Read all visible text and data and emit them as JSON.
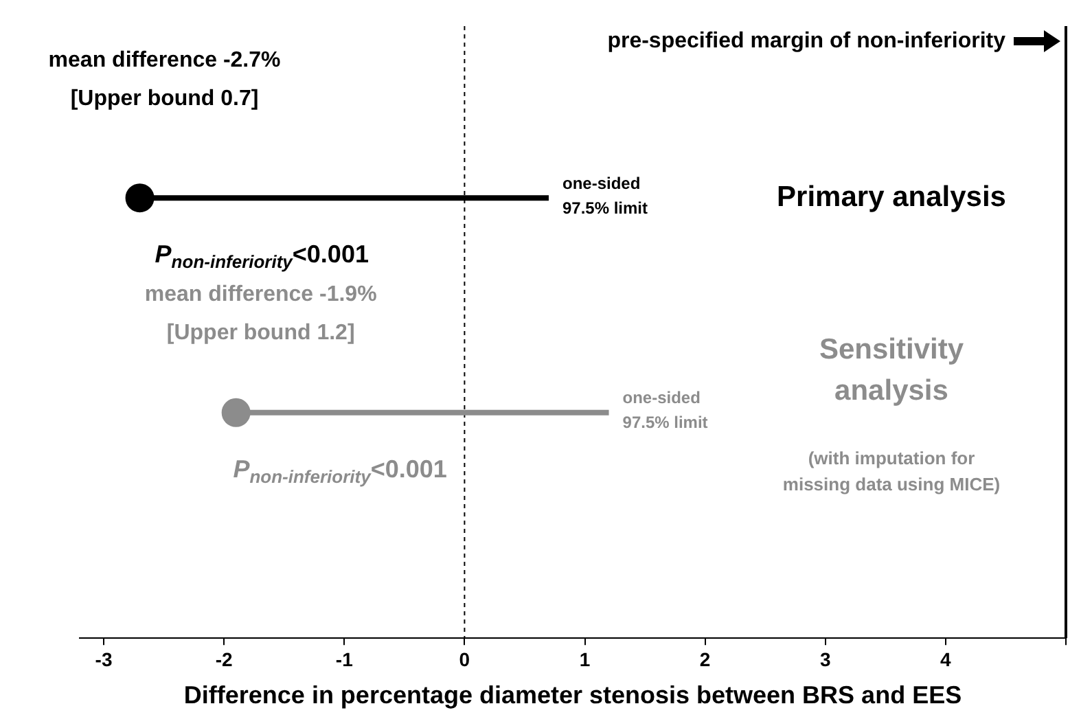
{
  "chart_data": {
    "type": "scatter",
    "orientation": "horizontal",
    "xlabel": "Difference in percentage diameter stenosis between BRS and EES",
    "categories": [
      null,
      null
    ],
    "series": [
      {
        "name": "Primary analysis",
        "color": "#000000",
        "values": [
          -2.7,
          null
        ],
        "errors": [
          [
            -2.7,
            0.7
          ],
          null
        ]
      },
      {
        "name": "Sensitivity analysis",
        "color": "#8c8c8c",
        "values": [
          null,
          -1.9
        ],
        "errors": [
          null,
          [
            -1.9,
            1.2
          ]
        ]
      }
    ],
    "xlim": [
      -3.2,
      5
    ],
    "xticks": [
      -3,
      -2,
      -1,
      0,
      1,
      2,
      3,
      4,
      {
        "value": 5,
        "label": null
      }
    ],
    "ref_lines": [
      {
        "axis": "x",
        "value": 0,
        "line_style": "dashed",
        "color": "#000000"
      },
      {
        "axis": "x",
        "value": 5,
        "label": "pre-specified margin of non-inferiority",
        "line_style": "solid",
        "color": "#000000"
      }
    ],
    "annotations": [
      "mean difference -2.7%\n[Upper bound 0.7]",
      "one-sided\n97.5% limit",
      "P$_{non-inferiority}$<0.001",
      "mean difference -1.9%\n[Upper bound 1.2]",
      "one-sided\n97.5% limit",
      "P$_{non-inferiority}$<0.001",
      "(with imputation for\nmissing data using MICE)"
    ],
    "marker": "circle",
    "legend": false
  }
}
